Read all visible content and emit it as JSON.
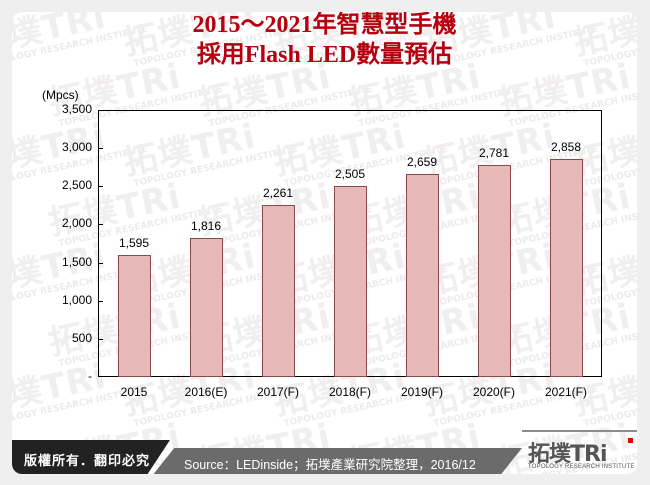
{
  "header": {
    "title_line1": "2015～2021年智慧型手機",
    "title_line2": "採用Flash LED數量預估"
  },
  "footer": {
    "copyright": "版權所有．翻印必究",
    "source": "Source：LEDinside；拓墣產業研究院整理，2016/12",
    "logo_cn": "拓墣TRi",
    "logo_en": "TOPOLOGY RESEARCH INSTITUTE"
  },
  "watermark": {
    "cn": "拓墣TRi",
    "en": "TOPOLOGY RESEARCH INSTITUTE"
  },
  "colors": {
    "title": "#b5000f",
    "bar_fill": "#e6b8b7",
    "bar_border": "#8a4a49"
  },
  "chart_data": {
    "type": "bar",
    "title": "2015～2021年智慧型手機採用Flash LED數量預估",
    "xlabel": "",
    "ylabel": "(Mpcs)",
    "ylim": [
      0,
      3500
    ],
    "yticks": [
      "3,500",
      "3,000",
      "2,500",
      "2,000",
      "1,500",
      "1,000",
      "500",
      "-"
    ],
    "ytick_values": [
      3500,
      3000,
      2500,
      2000,
      1500,
      1000,
      500,
      0
    ],
    "grid": false,
    "legend": null,
    "categories": [
      "2015",
      "2016(E)",
      "2017(F)",
      "2018(F)",
      "2019(F)",
      "2020(F)",
      "2021(F)"
    ],
    "values": [
      1595,
      1816,
      2261,
      2505,
      2659,
      2781,
      2858
    ],
    "value_labels": [
      "1,595",
      "1,816",
      "2,261",
      "2,505",
      "2,659",
      "2,781",
      "2,858"
    ]
  }
}
